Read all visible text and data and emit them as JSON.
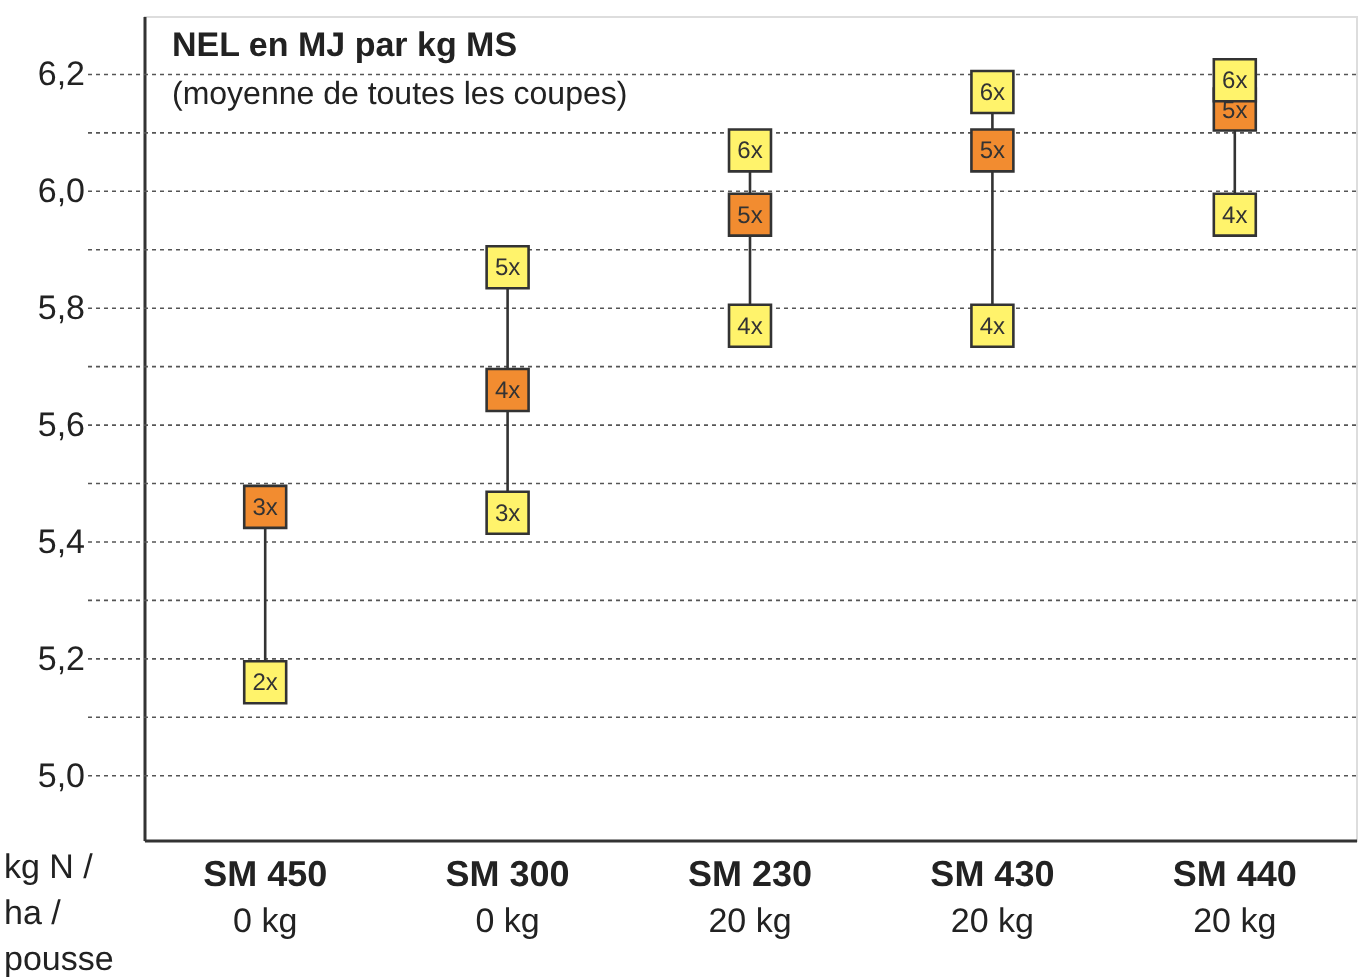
{
  "chart_data": {
    "type": "scatter",
    "title": "NEL en MJ par kg MS",
    "subtitle": "(moyenne de toutes les coupes)",
    "xlabel": "kg N /\nha /\npousse",
    "categories": [
      "SM 450\n0 kg",
      "SM 300\n0 kg",
      "SM 230\n20 kg",
      "SM 430\n20 kg",
      "SM 440\n20 kg"
    ],
    "series": [
      {
        "name": "2x",
        "values": [
          5.16,
          null,
          null,
          null,
          null
        ],
        "colors": [
          "#fff36b",
          null,
          null,
          null,
          null
        ]
      },
      {
        "name": "3x",
        "values": [
          5.46,
          5.45,
          null,
          null,
          null
        ],
        "colors": [
          "#f28c30",
          "#fff36b",
          null,
          null,
          null
        ]
      },
      {
        "name": "4x",
        "values": [
          null,
          5.66,
          5.77,
          5.77,
          5.96
        ],
        "colors": [
          null,
          "#f28c30",
          "#fff36b",
          "#fff36b",
          "#fff36b"
        ]
      },
      {
        "name": "5x",
        "values": [
          null,
          5.87,
          5.96,
          6.07,
          6.14
        ],
        "colors": [
          null,
          "#fff36b",
          "#f28c30",
          "#f28c30",
          "#f28c30"
        ]
      },
      {
        "name": "6x",
        "values": [
          null,
          null,
          6.07,
          6.17,
          6.19
        ],
        "colors": [
          null,
          null,
          "#fff36b",
          "#fff36b",
          "#fff36b"
        ]
      }
    ],
    "ylim": [
      4.89,
      6.3
    ],
    "yticks": [
      {
        "value": 5.0,
        "label": "5,0"
      },
      {
        "value": 5.1,
        "label": null
      },
      {
        "value": 5.2,
        "label": "5,2"
      },
      {
        "value": 5.3,
        "label": null
      },
      {
        "value": 5.4,
        "label": "5,4"
      },
      {
        "value": 5.5,
        "label": null
      },
      {
        "value": 5.6,
        "label": "5,6"
      },
      {
        "value": 5.7,
        "label": null
      },
      {
        "value": 5.8,
        "label": "5,8"
      },
      {
        "value": 5.9,
        "label": null
      },
      {
        "value": 6.0,
        "label": "6,0"
      },
      {
        "value": 6.1,
        "label": null
      },
      {
        "value": 6.2,
        "label": "6,2"
      }
    ],
    "grid": "y",
    "marker": "square"
  }
}
